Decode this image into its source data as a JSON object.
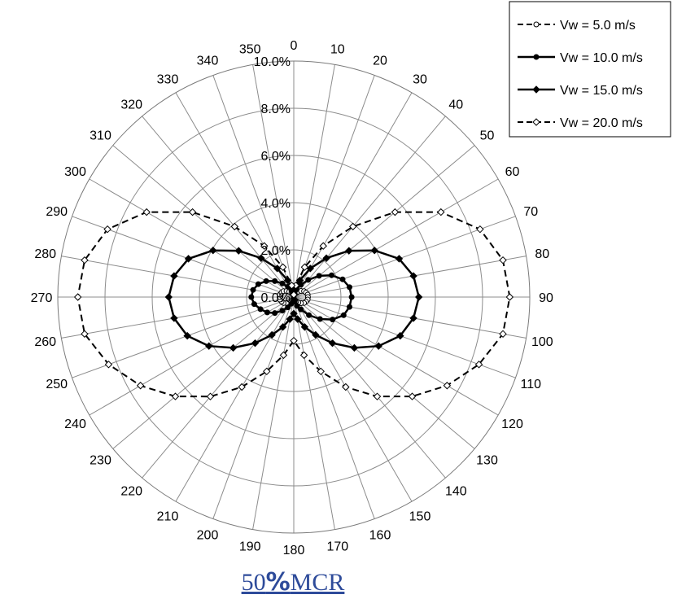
{
  "caption": {
    "number": "50",
    "percent": "%",
    "suffix": "MCR"
  },
  "chart_data": {
    "type": "polar-line",
    "title": "",
    "angular_axis": {
      "unit": "degrees",
      "direction": "clockwise",
      "zero_at": "top",
      "tick_labels": [
        "0",
        "10",
        "20",
        "30",
        "40",
        "50",
        "60",
        "70",
        "80",
        "90",
        "100",
        "110",
        "120",
        "130",
        "140",
        "150",
        "160",
        "170",
        "180",
        "190",
        "200",
        "210",
        "220",
        "230",
        "240",
        "250",
        "260",
        "270",
        "280",
        "290",
        "300",
        "310",
        "320",
        "330",
        "340",
        "350"
      ]
    },
    "radial_axis": {
      "range": [
        0,
        10
      ],
      "tick_values": [
        0,
        2,
        4,
        6,
        8,
        10
      ],
      "tick_labels": [
        "0.0%",
        "2.0%",
        "4.0%",
        "6.0%",
        "8.0%",
        "10.0%"
      ],
      "grid": true
    },
    "legend": {
      "position": "top-right"
    },
    "series": [
      {
        "name": "Vw = 5.0 m/s",
        "line_style": "dashed",
        "marker": "circle-open",
        "angles": [
          0,
          10,
          20,
          30,
          40,
          50,
          60,
          70,
          80,
          90,
          100,
          110,
          120,
          130,
          140,
          150,
          160,
          170,
          180,
          190,
          200,
          210,
          220,
          230,
          240,
          250,
          260,
          270,
          280,
          290,
          300,
          310,
          320,
          330,
          340,
          350
        ],
        "values": [
          0.05,
          0.1,
          0.15,
          0.2,
          0.3,
          0.4,
          0.5,
          0.55,
          0.6,
          0.6,
          0.6,
          0.55,
          0.5,
          0.4,
          0.3,
          0.2,
          0.15,
          0.1,
          0.05,
          0.1,
          0.15,
          0.2,
          0.3,
          0.4,
          0.5,
          0.55,
          0.6,
          0.6,
          0.6,
          0.55,
          0.5,
          0.4,
          0.3,
          0.2,
          0.15,
          0.1
        ]
      },
      {
        "name": "Vw = 10.0 m/s",
        "line_style": "solid",
        "marker": "circle-filled",
        "angles": [
          0,
          10,
          20,
          30,
          40,
          50,
          60,
          70,
          80,
          90,
          100,
          110,
          120,
          130,
          140,
          150,
          160,
          170,
          180,
          190,
          200,
          210,
          220,
          230,
          240,
          250,
          260,
          270,
          280,
          290,
          300,
          310,
          320,
          330,
          340,
          350
        ],
        "values": [
          0.1,
          0.2,
          0.35,
          0.6,
          0.95,
          1.4,
          1.85,
          2.2,
          2.4,
          2.45,
          2.4,
          2.25,
          1.9,
          1.45,
          1.0,
          0.6,
          0.4,
          0.2,
          0.1,
          0.2,
          0.3,
          0.5,
          0.75,
          1.05,
          1.3,
          1.5,
          1.7,
          1.8,
          1.75,
          1.6,
          1.35,
          1.05,
          0.75,
          0.5,
          0.3,
          0.15
        ]
      },
      {
        "name": "Vw = 15.0 m/s",
        "line_style": "solid",
        "marker": "diamond-filled",
        "angles": [
          0,
          10,
          20,
          30,
          40,
          50,
          60,
          70,
          80,
          90,
          100,
          110,
          120,
          130,
          140,
          150,
          160,
          170,
          180,
          190,
          200,
          210,
          220,
          230,
          240,
          250,
          260,
          270,
          280,
          290,
          300,
          310,
          320,
          330,
          340,
          350
        ],
        "values": [
          0.1,
          0.3,
          0.75,
          1.4,
          2.15,
          3.05,
          3.95,
          4.75,
          5.15,
          5.3,
          5.15,
          4.8,
          4.15,
          3.35,
          2.55,
          1.85,
          1.35,
          0.95,
          0.7,
          0.95,
          1.35,
          1.85,
          2.55,
          3.35,
          4.15,
          4.8,
          5.15,
          5.3,
          5.15,
          4.75,
          3.95,
          3.05,
          2.15,
          1.4,
          0.75,
          0.3
        ]
      },
      {
        "name": "Vw = 20.0 m/s",
        "line_style": "dashed",
        "marker": "diamond-open",
        "angles": [
          0,
          10,
          20,
          30,
          40,
          50,
          60,
          70,
          80,
          90,
          100,
          110,
          120,
          130,
          140,
          150,
          160,
          170,
          180,
          190,
          200,
          210,
          220,
          230,
          240,
          250,
          260,
          270,
          280,
          290,
          300,
          310,
          320,
          330,
          340,
          350
        ],
        "values": [
          0.1,
          0.5,
          1.35,
          2.5,
          3.9,
          5.6,
          7.2,
          8.4,
          9.0,
          9.15,
          9.0,
          8.35,
          7.5,
          6.55,
          5.5,
          4.4,
          3.35,
          2.5,
          1.85,
          2.5,
          3.35,
          4.4,
          5.5,
          6.55,
          7.5,
          8.35,
          9.0,
          9.15,
          9.0,
          8.4,
          7.2,
          5.6,
          3.9,
          2.5,
          1.35,
          0.5
        ]
      }
    ]
  }
}
